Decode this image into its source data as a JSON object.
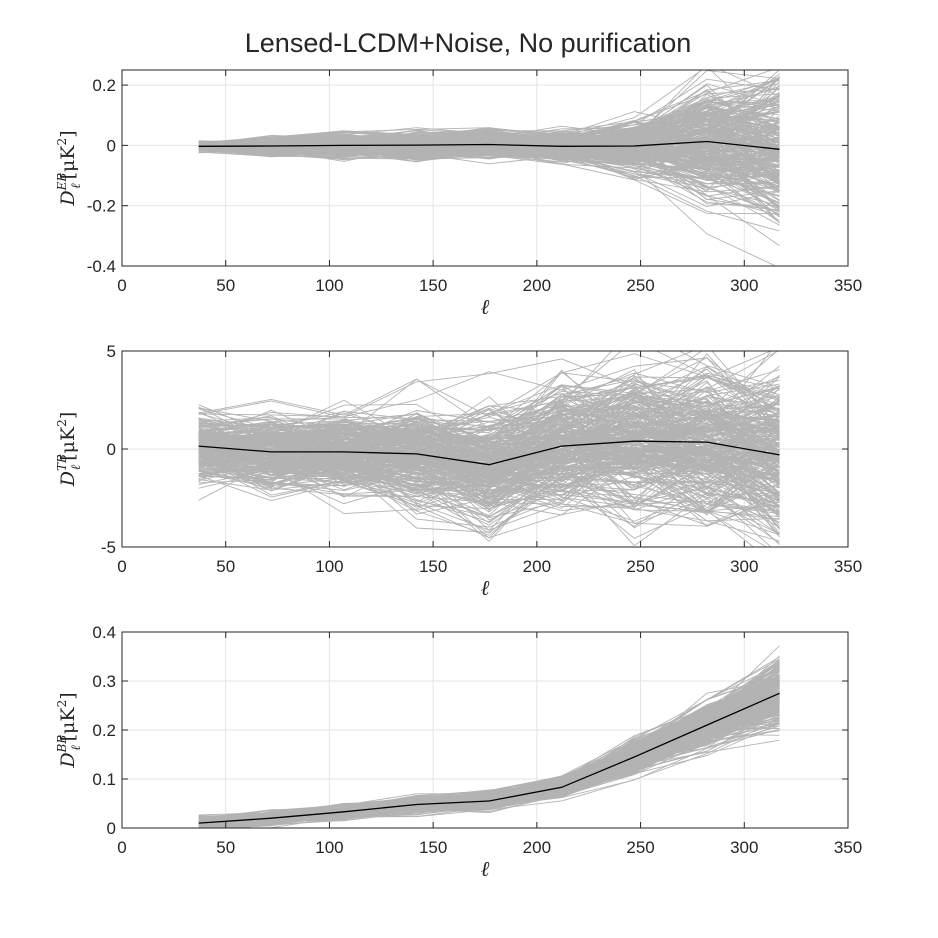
{
  "figure": {
    "title": "Lensed-LCDM+Noise, No purification"
  },
  "chart_data": [
    {
      "type": "line",
      "xlabel": "ℓ",
      "ylabel": {
        "base": "D",
        "sup": "EB",
        "sub": "ℓ",
        "unit_pre": "[μK",
        "unit_exp": "2",
        "unit_post": "]"
      },
      "xlim": [
        0,
        350
      ],
      "ylim": [
        -0.4,
        0.25
      ],
      "xticks": [
        0,
        50,
        100,
        150,
        200,
        250,
        300,
        350
      ],
      "xtick_labels": [
        "0",
        "50",
        "100",
        "150",
        "200",
        "250",
        "300",
        "350"
      ],
      "yticks": [
        -0.4,
        -0.2,
        0,
        0.2
      ],
      "ytick_labels": [
        "-0.4",
        "-0.2",
        "0",
        "0.2"
      ],
      "grid": true,
      "x": [
        37,
        72,
        107,
        142,
        177,
        212,
        247,
        282,
        317
      ],
      "mean": [
        -0.003,
        -0.002,
        0.0,
        0.001,
        0.003,
        -0.003,
        -0.002,
        0.013,
        -0.013
      ],
      "spread": [
        0.012,
        0.025,
        0.03,
        0.035,
        0.035,
        0.04,
        0.07,
        0.15,
        0.2
      ],
      "realizations": 300,
      "colors": {
        "mean": "#000000",
        "realizations": "#b3b3b3"
      }
    },
    {
      "type": "line",
      "xlabel": "ℓ",
      "ylabel": {
        "base": "D",
        "sup": "TB",
        "sub": "ℓ",
        "unit_pre": "[μK",
        "unit_exp": "2",
        "unit_post": "]"
      },
      "xlim": [
        0,
        350
      ],
      "ylim": [
        -5,
        5
      ],
      "xticks": [
        0,
        50,
        100,
        150,
        200,
        250,
        300,
        350
      ],
      "xtick_labels": [
        "0",
        "50",
        "100",
        "150",
        "200",
        "250",
        "300",
        "350"
      ],
      "yticks": [
        -5,
        0,
        5
      ],
      "ytick_labels": [
        "-5",
        "0",
        "5"
      ],
      "grid": true,
      "x": [
        37,
        72,
        107,
        142,
        177,
        212,
        247,
        282,
        317
      ],
      "mean": [
        0.15,
        -0.15,
        -0.15,
        -0.25,
        -0.8,
        0.15,
        0.4,
        0.35,
        -0.3
      ],
      "spread": [
        1.3,
        1.5,
        1.6,
        2.0,
        2.4,
        2.6,
        2.9,
        3.0,
        3.4
      ],
      "realizations": 300,
      "colors": {
        "mean": "#000000",
        "realizations": "#b3b3b3"
      }
    },
    {
      "type": "line",
      "xlabel": "ℓ",
      "ylabel": {
        "base": "D",
        "sup": "BB",
        "sub": "ℓ",
        "unit_pre": "[μK",
        "unit_exp": "2",
        "unit_post": "]"
      },
      "xlim": [
        0,
        350
      ],
      "ylim": [
        0,
        0.4
      ],
      "xticks": [
        0,
        50,
        100,
        150,
        200,
        250,
        300,
        350
      ],
      "xtick_labels": [
        "0",
        "50",
        "100",
        "150",
        "200",
        "250",
        "300",
        "350"
      ],
      "yticks": [
        0,
        0.1,
        0.2,
        0.3,
        0.4
      ],
      "ytick_labels": [
        "0",
        "0.1",
        "0.2",
        "0.3",
        "0.4"
      ],
      "grid": true,
      "x": [
        37,
        72,
        107,
        142,
        177,
        212,
        247,
        282,
        317
      ],
      "mean": [
        0.01,
        0.02,
        0.033,
        0.048,
        0.055,
        0.083,
        0.145,
        0.21,
        0.275
      ],
      "spread": [
        0.01,
        0.01,
        0.01,
        0.012,
        0.013,
        0.015,
        0.025,
        0.035,
        0.05
      ],
      "realizations": 300,
      "colors": {
        "mean": "#000000",
        "realizations": "#b3b3b3"
      }
    }
  ]
}
